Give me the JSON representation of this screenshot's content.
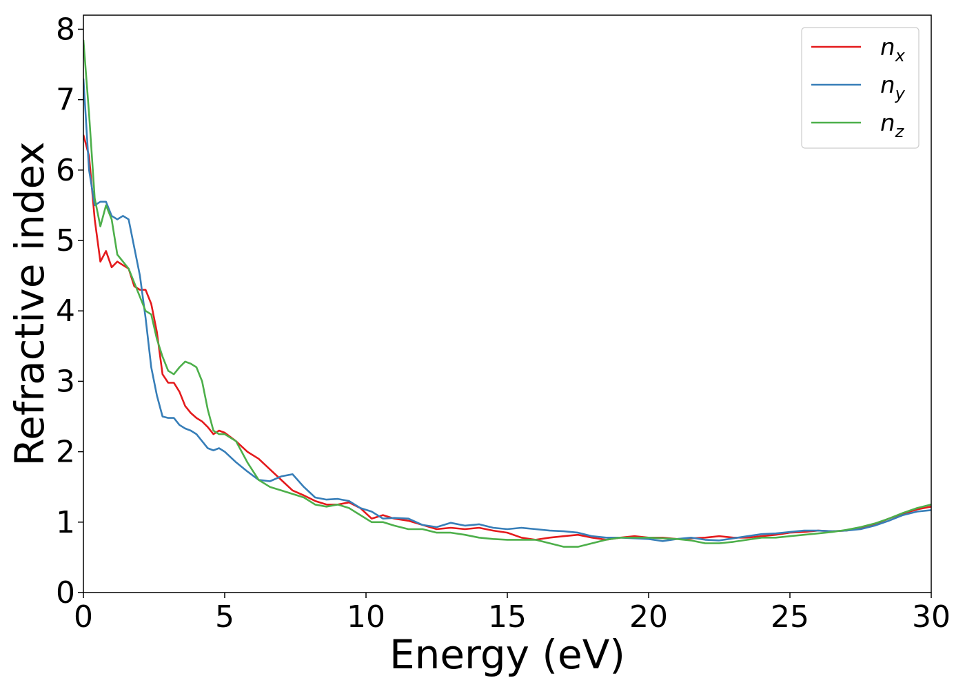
{
  "chart_data": {
    "type": "line",
    "title": "",
    "xlabel": "Energy (eV)",
    "ylabel": "Refractive index",
    "xlim": [
      0,
      30
    ],
    "ylim": [
      0,
      8.2
    ],
    "xticks": [
      0,
      5,
      10,
      15,
      20,
      25,
      30
    ],
    "yticks": [
      0,
      1,
      2,
      3,
      4,
      5,
      6,
      7,
      8
    ],
    "grid": false,
    "legend_position": "top-right",
    "series": [
      {
        "name": "x",
        "color": "#e41a1c",
        "x": [
          0,
          0.2,
          0.4,
          0.6,
          0.8,
          1.0,
          1.2,
          1.4,
          1.6,
          1.8,
          2.0,
          2.2,
          2.4,
          2.6,
          2.8,
          3.0,
          3.2,
          3.4,
          3.6,
          3.8,
          4.0,
          4.2,
          4.4,
          4.6,
          4.8,
          5.0,
          5.4,
          5.8,
          6.2,
          6.6,
          7.0,
          7.4,
          7.8,
          8.2,
          8.6,
          9.0,
          9.4,
          9.8,
          10.2,
          10.6,
          11.0,
          11.5,
          12.0,
          12.5,
          13.0,
          13.5,
          14.0,
          14.5,
          15.0,
          15.5,
          16.0,
          16.5,
          17.0,
          17.5,
          18.0,
          18.5,
          19.0,
          19.5,
          20.0,
          20.5,
          21.0,
          21.5,
          22.0,
          22.5,
          23.0,
          23.5,
          24.0,
          24.5,
          25.0,
          25.5,
          26.0,
          26.5,
          27.0,
          27.5,
          28.0,
          28.5,
          29.0,
          29.5,
          30.0
        ],
        "y": [
          6.5,
          6.2,
          5.3,
          4.7,
          4.85,
          4.62,
          4.7,
          4.65,
          4.6,
          4.35,
          4.3,
          4.3,
          4.1,
          3.7,
          3.1,
          2.98,
          2.98,
          2.85,
          2.65,
          2.55,
          2.48,
          2.43,
          2.35,
          2.25,
          2.3,
          2.27,
          2.15,
          2.0,
          1.9,
          1.75,
          1.6,
          1.45,
          1.38,
          1.3,
          1.25,
          1.25,
          1.28,
          1.2,
          1.05,
          1.1,
          1.05,
          1.02,
          0.96,
          0.9,
          0.92,
          0.9,
          0.92,
          0.88,
          0.85,
          0.78,
          0.75,
          0.78,
          0.8,
          0.82,
          0.78,
          0.75,
          0.78,
          0.8,
          0.78,
          0.78,
          0.76,
          0.77,
          0.78,
          0.8,
          0.78,
          0.78,
          0.8,
          0.82,
          0.85,
          0.86,
          0.88,
          0.87,
          0.88,
          0.92,
          0.97,
          1.05,
          1.12,
          1.18,
          1.22
        ]
      },
      {
        "name": "y",
        "color": "#377eb8",
        "x": [
          0,
          0.2,
          0.4,
          0.6,
          0.8,
          1.0,
          1.2,
          1.4,
          1.6,
          1.8,
          2.0,
          2.2,
          2.4,
          2.6,
          2.8,
          3.0,
          3.2,
          3.4,
          3.6,
          3.8,
          4.0,
          4.2,
          4.4,
          4.6,
          4.8,
          5.0,
          5.4,
          5.8,
          6.2,
          6.6,
          7.0,
          7.4,
          7.8,
          8.2,
          8.6,
          9.0,
          9.4,
          9.8,
          10.2,
          10.6,
          11.0,
          11.5,
          12.0,
          12.5,
          13.0,
          13.5,
          14.0,
          14.5,
          15.0,
          15.5,
          16.0,
          16.5,
          17.0,
          17.5,
          18.0,
          18.5,
          19.0,
          19.5,
          20.0,
          20.5,
          21.0,
          21.5,
          22.0,
          22.5,
          23.0,
          23.5,
          24.0,
          24.5,
          25.0,
          25.5,
          26.0,
          26.5,
          27.0,
          27.5,
          28.0,
          28.5,
          29.0,
          29.5,
          30.0
        ],
        "y": [
          7.3,
          6.0,
          5.5,
          5.55,
          5.55,
          5.35,
          5.3,
          5.35,
          5.3,
          4.9,
          4.5,
          3.9,
          3.2,
          2.8,
          2.5,
          2.48,
          2.48,
          2.38,
          2.33,
          2.3,
          2.25,
          2.15,
          2.05,
          2.02,
          2.05,
          2.0,
          1.85,
          1.72,
          1.6,
          1.58,
          1.65,
          1.68,
          1.5,
          1.35,
          1.32,
          1.33,
          1.3,
          1.2,
          1.15,
          1.05,
          1.06,
          1.05,
          0.96,
          0.93,
          0.99,
          0.95,
          0.97,
          0.92,
          0.9,
          0.92,
          0.9,
          0.88,
          0.87,
          0.85,
          0.8,
          0.78,
          0.78,
          0.77,
          0.76,
          0.73,
          0.76,
          0.78,
          0.75,
          0.74,
          0.77,
          0.8,
          0.83,
          0.84,
          0.86,
          0.88,
          0.88,
          0.87,
          0.88,
          0.9,
          0.95,
          1.02,
          1.1,
          1.15,
          1.17
        ]
      },
      {
        "name": "z",
        "color": "#4daf4a",
        "x": [
          0,
          0.2,
          0.4,
          0.6,
          0.8,
          1.0,
          1.2,
          1.4,
          1.6,
          1.8,
          2.0,
          2.2,
          2.4,
          2.6,
          2.8,
          3.0,
          3.2,
          3.4,
          3.6,
          3.8,
          4.0,
          4.2,
          4.4,
          4.6,
          4.8,
          5.0,
          5.4,
          5.8,
          6.2,
          6.6,
          7.0,
          7.4,
          7.8,
          8.2,
          8.6,
          9.0,
          9.4,
          9.8,
          10.2,
          10.6,
          11.0,
          11.5,
          12.0,
          12.5,
          13.0,
          13.5,
          14.0,
          14.5,
          15.0,
          15.5,
          16.0,
          16.5,
          17.0,
          17.5,
          18.0,
          18.5,
          19.0,
          19.5,
          20.0,
          20.5,
          21.0,
          21.5,
          22.0,
          22.5,
          23.0,
          23.5,
          24.0,
          24.5,
          25.0,
          25.5,
          26.0,
          26.5,
          27.0,
          27.5,
          28.0,
          28.5,
          29.0,
          29.5,
          30.0
        ],
        "y": [
          7.85,
          6.8,
          5.6,
          5.2,
          5.5,
          5.3,
          4.8,
          4.7,
          4.6,
          4.4,
          4.2,
          4.0,
          3.95,
          3.6,
          3.35,
          3.15,
          3.1,
          3.2,
          3.28,
          3.25,
          3.2,
          3.0,
          2.6,
          2.3,
          2.25,
          2.25,
          2.15,
          1.85,
          1.6,
          1.5,
          1.45,
          1.4,
          1.35,
          1.25,
          1.22,
          1.25,
          1.2,
          1.1,
          1.0,
          1.0,
          0.95,
          0.9,
          0.9,
          0.85,
          0.85,
          0.82,
          0.78,
          0.76,
          0.75,
          0.75,
          0.75,
          0.7,
          0.65,
          0.65,
          0.7,
          0.75,
          0.78,
          0.78,
          0.78,
          0.77,
          0.76,
          0.74,
          0.7,
          0.7,
          0.72,
          0.75,
          0.78,
          0.78,
          0.8,
          0.82,
          0.84,
          0.86,
          0.89,
          0.93,
          0.98,
          1.05,
          1.13,
          1.2,
          1.25
        ]
      }
    ]
  }
}
